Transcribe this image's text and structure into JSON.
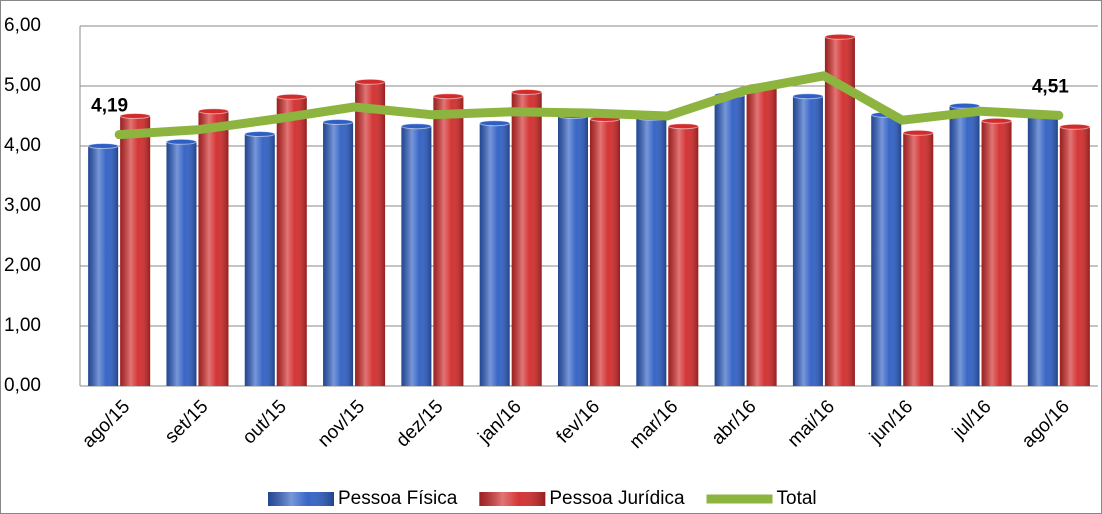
{
  "chart_data": {
    "type": "bar",
    "categories": [
      "ago/15",
      "set/15",
      "out/15",
      "nov/15",
      "dez/15",
      "jan/16",
      "fev/16",
      "mar/16",
      "abr/16",
      "mai/16",
      "jun/16",
      "jul/16",
      "ago/16"
    ],
    "series": [
      {
        "name": "Pessoa Física",
        "color": "#2f5fc4",
        "values": [
          4.0,
          4.07,
          4.2,
          4.4,
          4.33,
          4.38,
          4.5,
          4.47,
          4.85,
          4.83,
          4.52,
          4.67,
          4.55
        ]
      },
      {
        "name": "Pessoa Jurídica",
        "color": "#d22b2b",
        "values": [
          4.5,
          4.58,
          4.82,
          5.07,
          4.83,
          4.9,
          4.45,
          4.33,
          5.0,
          5.82,
          4.22,
          4.42,
          4.32
        ]
      },
      {
        "name": "Total",
        "type": "line",
        "color": "#8db43f",
        "values": [
          4.19,
          4.27,
          4.45,
          4.65,
          4.52,
          4.57,
          4.55,
          4.5,
          4.93,
          5.17,
          4.43,
          4.58,
          4.51
        ],
        "value_labels": [
          "4,19",
          null,
          null,
          null,
          null,
          null,
          null,
          null,
          null,
          null,
          null,
          null,
          "4,51"
        ]
      }
    ],
    "ylim": [
      0,
      6
    ],
    "yticks": [
      {
        "value": 0,
        "label": "0,00"
      },
      {
        "value": 1,
        "label": "1,00"
      },
      {
        "value": 2,
        "label": "2,00"
      },
      {
        "value": 3,
        "label": "3,00"
      },
      {
        "value": 4,
        "label": "4,00"
      },
      {
        "value": 5,
        "label": "5,00"
      },
      {
        "value": 6,
        "label": "6,00"
      }
    ],
    "grid": true,
    "legend": "bottom"
  }
}
